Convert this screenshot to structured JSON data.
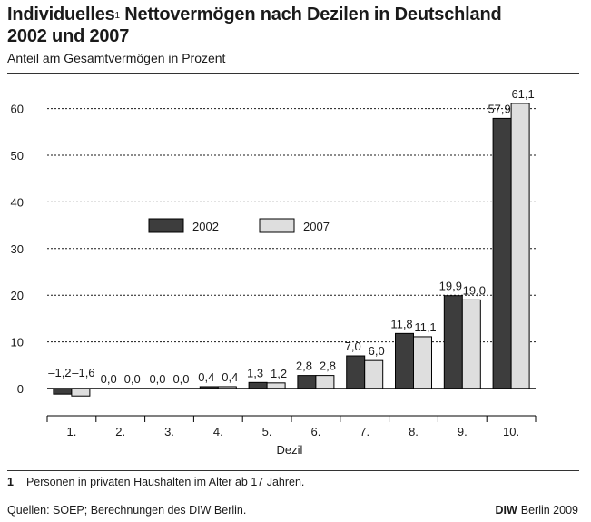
{
  "header": {
    "title_part1": "Individuelles",
    "title_footnote_mark": "1",
    "title_part2": " Nettovermögen nach Dezilen in Deutschland",
    "title_line2": "2002 und 2007",
    "subtitle": "Anteil am Gesamtvermögen in Prozent"
  },
  "footnote": {
    "number": "1",
    "text": "Personen in privaten Haushalten im Alter ab 17 Jahren."
  },
  "footer": {
    "source": "Quellen: SOEP; Berechnungen des DIW Berlin.",
    "org": "DIW",
    "credit": "Berlin 2009"
  },
  "colors": {
    "series_2002": "#3d3d3d",
    "series_2007": "#dedede",
    "grid": "#1a1a1a"
  },
  "chart_data": {
    "type": "bar",
    "xlabel": "Dezil",
    "ylabel": "",
    "ylim": [
      -4,
      65
    ],
    "yticks": [
      0,
      10,
      20,
      30,
      40,
      50,
      60
    ],
    "grid": true,
    "legend_position": "upper-left",
    "categories": [
      "1.",
      "2.",
      "3.",
      "4.",
      "5.",
      "6.",
      "7.",
      "8.",
      "9.",
      "10."
    ],
    "series": [
      {
        "name": "2002",
        "values": [
          -1.2,
          0.0,
          0.0,
          0.4,
          1.3,
          2.8,
          7.0,
          11.8,
          19.9,
          57.9
        ],
        "labels": [
          "–1,2",
          "0,0",
          "0,0",
          "0,4",
          "1,3",
          "2,8",
          "7,0",
          "11,8",
          "19,9",
          "57,9"
        ]
      },
      {
        "name": "2007",
        "values": [
          -1.6,
          0.0,
          0.0,
          0.4,
          1.2,
          2.8,
          6.0,
          11.1,
          19.0,
          61.1
        ],
        "labels": [
          "–1,6",
          "0,0",
          "0,0",
          "0,4",
          "1,2",
          "2,8",
          "6,0",
          "11,1",
          "19,0",
          "61,1"
        ]
      }
    ]
  }
}
